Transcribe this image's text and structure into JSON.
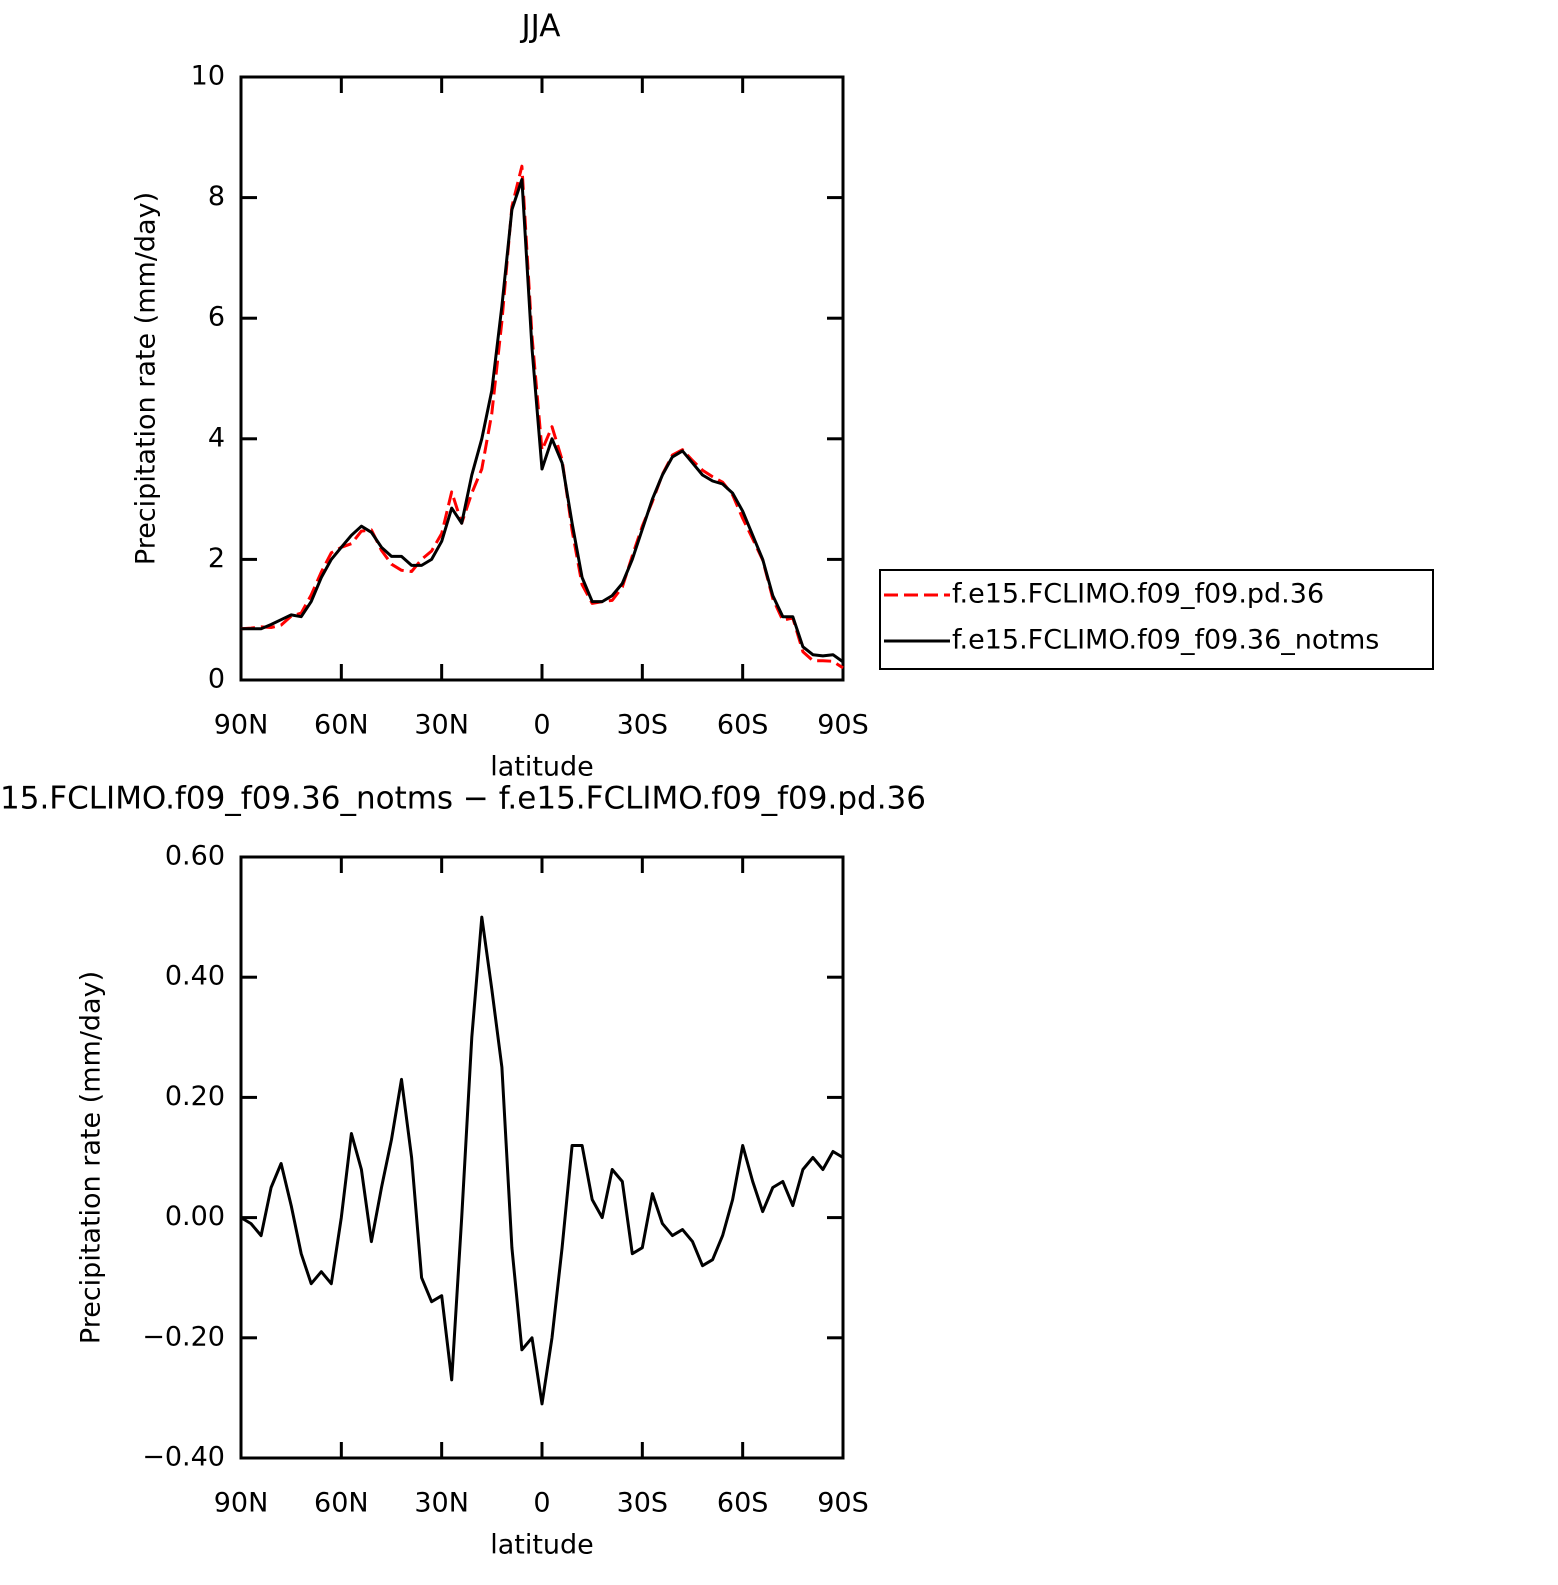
{
  "chart_data": [
    {
      "type": "line",
      "title": "JJA",
      "x_label": "latitude",
      "y_label": "Precipitation rate (mm/day)",
      "x": [
        90,
        87,
        84,
        81,
        78,
        75,
        72,
        69,
        66,
        63,
        60,
        57,
        54,
        51,
        48,
        45,
        42,
        39,
        36,
        33,
        30,
        27,
        24,
        21,
        18,
        15,
        12,
        9,
        6,
        3,
        0,
        -3,
        -6,
        -9,
        -12,
        -15,
        -18,
        -21,
        -24,
        -27,
        -30,
        -33,
        -36,
        -39,
        -42,
        -45,
        -48,
        -51,
        -54,
        -57,
        -60,
        -63,
        -66,
        -69,
        -72,
        -75,
        -78,
        -81,
        -84,
        -87,
        -90
      ],
      "xlim": [
        90,
        -90
      ],
      "xticks": [
        {
          "value": 90,
          "label": "90N"
        },
        {
          "value": 60,
          "label": "60N"
        },
        {
          "value": 30,
          "label": "30N"
        },
        0,
        {
          "value": -30,
          "label": "30S"
        },
        {
          "value": -60,
          "label": "60S"
        },
        {
          "value": -90,
          "label": "90S"
        }
      ],
      "ylim": [
        0,
        10
      ],
      "yticks": [
        0,
        2,
        4,
        6,
        8,
        10
      ],
      "legend": "right",
      "series": [
        {
          "name": "f.e15.FCLIMO.f09_f09.pd.36",
          "color": "#ff0000",
          "dash": "dashed",
          "values": [
            0.85,
            0.86,
            0.88,
            0.87,
            0.91,
            1.06,
            1.11,
            1.41,
            1.79,
            2.11,
            2.2,
            2.26,
            2.47,
            2.49,
            2.15,
            1.92,
            1.82,
            1.8,
            2.0,
            2.14,
            2.43,
            3.12,
            2.6,
            3.1,
            3.5,
            4.42,
            5.95,
            7.85,
            8.52,
            5.7,
            3.81,
            4.2,
            3.65,
            2.48,
            1.58,
            1.27,
            1.3,
            1.32,
            1.54,
            2.06,
            2.55,
            2.96,
            3.41,
            3.73,
            3.82,
            3.64,
            3.48,
            3.37,
            3.28,
            3.07,
            2.68,
            2.34,
            1.99,
            1.35,
            0.99,
            1.03,
            0.47,
            0.32,
            0.32,
            0.31,
            0.2
          ]
        },
        {
          "name": "f.e15.FCLIMO.f09_f09.36_notms",
          "color": "#000000",
          "dash": "solid",
          "values": [
            0.85,
            0.85,
            0.85,
            0.92,
            1.0,
            1.08,
            1.05,
            1.3,
            1.7,
            2.0,
            2.2,
            2.4,
            2.55,
            2.45,
            2.2,
            2.05,
            2.05,
            1.9,
            1.9,
            2.0,
            2.3,
            2.85,
            2.6,
            3.4,
            4.0,
            4.8,
            6.2,
            7.8,
            8.3,
            5.5,
            3.5,
            4.0,
            3.6,
            2.6,
            1.7,
            1.3,
            1.3,
            1.4,
            1.6,
            2.0,
            2.5,
            3.0,
            3.4,
            3.7,
            3.8,
            3.6,
            3.4,
            3.3,
            3.25,
            3.1,
            2.8,
            2.4,
            2.0,
            1.4,
            1.05,
            1.05,
            0.55,
            0.42,
            0.4,
            0.42,
            0.3
          ]
        }
      ]
    },
    {
      "type": "line",
      "title": "15.FCLIMO.f09_f09.36_notms − f.e15.FCLIMO.f09_f09.pd.36",
      "x_label": "latitude",
      "y_label": "Precipitation rate (mm/day)",
      "x": [
        90,
        87,
        84,
        81,
        78,
        75,
        72,
        69,
        66,
        63,
        60,
        57,
        54,
        51,
        48,
        45,
        42,
        39,
        36,
        33,
        30,
        27,
        24,
        21,
        18,
        15,
        12,
        9,
        6,
        3,
        0,
        -3,
        -6,
        -9,
        -12,
        -15,
        -18,
        -21,
        -24,
        -27,
        -30,
        -33,
        -36,
        -39,
        -42,
        -45,
        -48,
        -51,
        -54,
        -57,
        -60,
        -63,
        -66,
        -69,
        -72,
        -75,
        -78,
        -81,
        -84,
        -87,
        -90
      ],
      "xlim": [
        90,
        -90
      ],
      "xticks": [
        {
          "value": 90,
          "label": "90N"
        },
        {
          "value": 60,
          "label": "60N"
        },
        {
          "value": 30,
          "label": "30N"
        },
        0,
        {
          "value": -30,
          "label": "30S"
        },
        {
          "value": -60,
          "label": "60S"
        },
        {
          "value": -90,
          "label": "90S"
        }
      ],
      "ylim": [
        -0.4,
        0.6
      ],
      "yticks": [
        {
          "value": 0.6,
          "label": "0.60"
        },
        {
          "value": 0.4,
          "label": "0.40"
        },
        {
          "value": 0.2,
          "label": "0.20"
        },
        {
          "value": 0,
          "label": "0.00"
        },
        {
          "value": -0.2,
          "label": "−0.20"
        },
        {
          "value": -0.4,
          "label": "−0.40"
        }
      ],
      "series": [
        {
          "color": "#000000",
          "dash": "solid",
          "values": [
            0.0,
            -0.01,
            -0.03,
            0.05,
            0.09,
            0.02,
            -0.06,
            -0.11,
            -0.09,
            -0.11,
            0.0,
            0.14,
            0.08,
            -0.04,
            0.05,
            0.13,
            0.23,
            0.1,
            -0.1,
            -0.14,
            -0.13,
            -0.27,
            0.0,
            0.3,
            0.5,
            0.38,
            0.25,
            -0.05,
            -0.22,
            -0.2,
            -0.31,
            -0.2,
            -0.05,
            0.12,
            0.12,
            0.03,
            0.0,
            0.08,
            0.06,
            -0.06,
            -0.05,
            0.04,
            -0.01,
            -0.03,
            -0.02,
            -0.04,
            -0.08,
            -0.07,
            -0.03,
            0.03,
            0.12,
            0.06,
            0.01,
            0.05,
            0.06,
            0.02,
            0.08,
            0.1,
            0.08,
            0.11,
            0.1
          ]
        }
      ]
    }
  ]
}
